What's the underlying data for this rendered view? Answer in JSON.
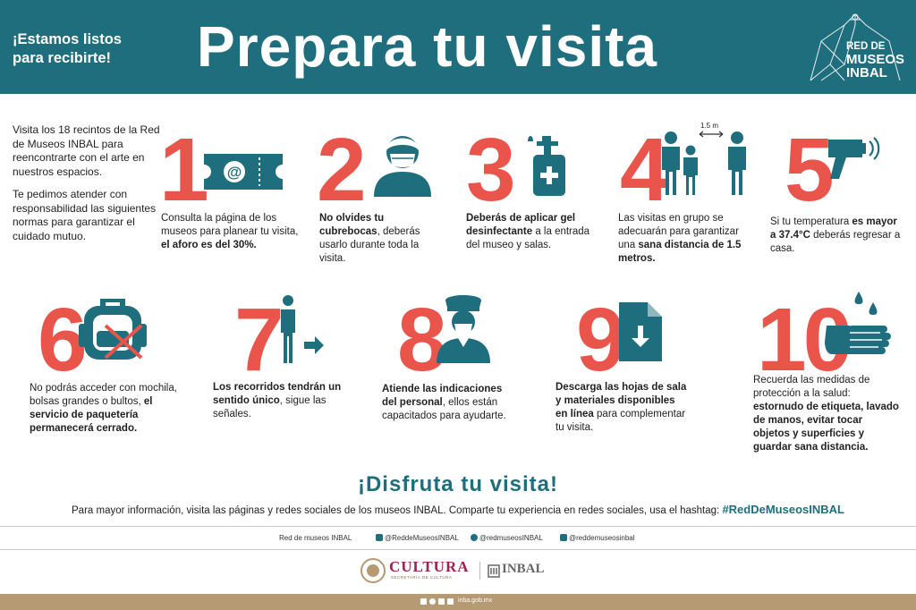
{
  "header": {
    "tagline_line1": "¡Estamos listos",
    "tagline_line2": "para recibirte!",
    "title": "Prepara tu visita",
    "logo": {
      "line1": "RED DE",
      "line2": "MUSEOS",
      "line3": "INBAL"
    }
  },
  "intro": {
    "p1": "Visita los 18 recintos de la Red de Museos INBAL para reencontrarte con el arte en nuestros espacios.",
    "p2": "Te pedimos atender con responsabilidad las siguientes normas para garantizar el cuidado mutuo."
  },
  "steps": [
    {
      "number": "1",
      "icon": "ticket-at-icon",
      "pre": "Consulta la página de los museos para planear tu visita, ",
      "bold": "el aforo es del 30%.",
      "post": ""
    },
    {
      "number": "2",
      "icon": "face-mask-icon",
      "pre": "",
      "bold": "No olvides tu cubrebocas",
      "post": ", deberás usarlo durante toda la visita."
    },
    {
      "number": "3",
      "icon": "sanitizer-icon",
      "pre": "",
      "bold": "Deberás de aplicar gel desinfectante",
      "post": " a la entrada del museo y salas."
    },
    {
      "number": "4",
      "icon": "distance-people-icon",
      "distance_label": "1.5 m",
      "pre": "Las visitas en grupo se adecuarán para garantizar una ",
      "bold": "sana distancia de 1.5 metros.",
      "post": ""
    },
    {
      "number": "5",
      "icon": "thermometer-gun-icon",
      "pre": "Si tu temperatura ",
      "bold": "es mayor a 37.4°C",
      "post": " deberás regresar a casa."
    },
    {
      "number": "6",
      "icon": "no-backpack-icon",
      "pre": "No podrás acceder con mochila, bolsas grandes o bultos, ",
      "bold": "el servicio de paquetería permanecerá cerrado.",
      "post": ""
    },
    {
      "number": "7",
      "icon": "one-way-walker-icon",
      "pre": "",
      "bold": "Los recorridos tendrán un sentido único",
      "post": ", sigue las señales."
    },
    {
      "number": "8",
      "icon": "staff-guard-icon",
      "pre": "",
      "bold": "Atiende las indicaciones del personal",
      "post": ", ellos están capacitados para ayudarte."
    },
    {
      "number": "9",
      "icon": "download-file-icon",
      "pre": "",
      "bold": "Descarga las hojas de sala y materiales disponibles en línea",
      "post": " para complementar tu visita."
    },
    {
      "number": "10",
      "icon": "hand-wash-icon",
      "pre": "Recuerda las medidas de protección a la salud: ",
      "bold": "estornudo de etiqueta, lavado de manos, evitar tocar objetos y superficies y guardar sana distancia.",
      "post": ""
    }
  ],
  "footer": {
    "enjoy": "¡Disfruta tu visita!",
    "info": "Para mayor información, visita las páginas y redes sociales de los museos INBAL. Comparte tu experiencia en redes sociales, usa el hashtag: ",
    "hashtag": "#RedDeMuseosINBAL",
    "social": {
      "label": "Red de museos INBAL",
      "facebook": "@ReddeMuseosINBAL",
      "twitter": "@redmuseosINBAL",
      "instagram": "@reddemuseosinbal"
    },
    "cultura": "CULTURA",
    "cultura_sub": "SECRETARÍA DE CULTURA",
    "inbal": "INBAL",
    "site": "inba.gob.mx"
  },
  "colors": {
    "teal": "#1f6e7e",
    "coral": "#e9544b",
    "tan": "#b59a74",
    "cultura": "#a1224a"
  }
}
